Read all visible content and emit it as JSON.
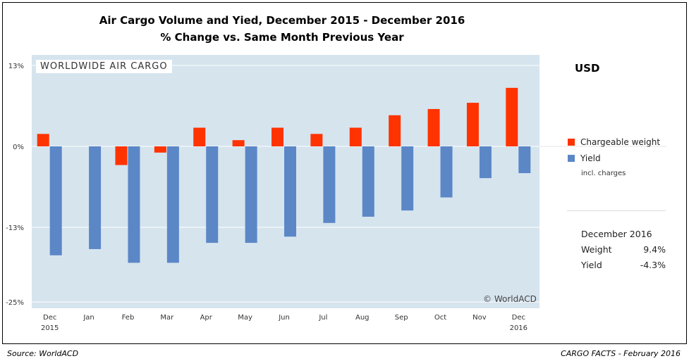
{
  "chart_data": {
    "type": "bar",
    "title": "Air Cargo Volume and Yied,  December 2015 - December 2016",
    "subtitle": "% Change vs. Same Month Previous Year",
    "categories": [
      "Dec",
      "Jan",
      "Feb",
      "Mar",
      "Apr",
      "May",
      "Jun",
      "Jul",
      "Aug",
      "Sep",
      "Oct",
      "Nov",
      "Dec"
    ],
    "category_sublabels": [
      "2015",
      "",
      "",
      "",
      "",
      "",
      "",
      "",
      "",
      "",
      "",
      "",
      "2016"
    ],
    "series": [
      {
        "name": "Chargeable weight",
        "color": "#ff3300",
        "values": [
          2,
          0,
          -3,
          -1,
          3,
          1,
          3,
          2,
          3,
          5,
          6,
          7,
          9.4
        ]
      },
      {
        "name": "Yield",
        "color": "#5b87c7",
        "values": [
          -17.5,
          -16.5,
          -18.7,
          -18.7,
          -15.5,
          -15.5,
          -14.5,
          -12.3,
          -11.3,
          -10.3,
          -8.2,
          -5.1,
          -4.3
        ]
      }
    ],
    "ylim": [
      -25,
      13
    ],
    "yticks": [
      13,
      0,
      -13,
      -25
    ],
    "ytick_labels": [
      "13%",
      "0%",
      "-13%",
      "-25%"
    ],
    "grid": true,
    "legend_position": "right"
  },
  "panel_label": "WORLDWIDE AIR CARGO",
  "copyright": "© WorldACD",
  "currency": "USD",
  "legend": {
    "items": [
      "Chargeable weight",
      "Yield"
    ],
    "note": "incl. charges"
  },
  "summary": {
    "period": "December 2016",
    "weight_label": "Weight",
    "weight_value": "9.4%",
    "yield_label": "Yield",
    "yield_value": "-4.3%"
  },
  "footer": {
    "source": "Source: WorldACD",
    "credit": "CARGO FACTS - February 2016"
  }
}
